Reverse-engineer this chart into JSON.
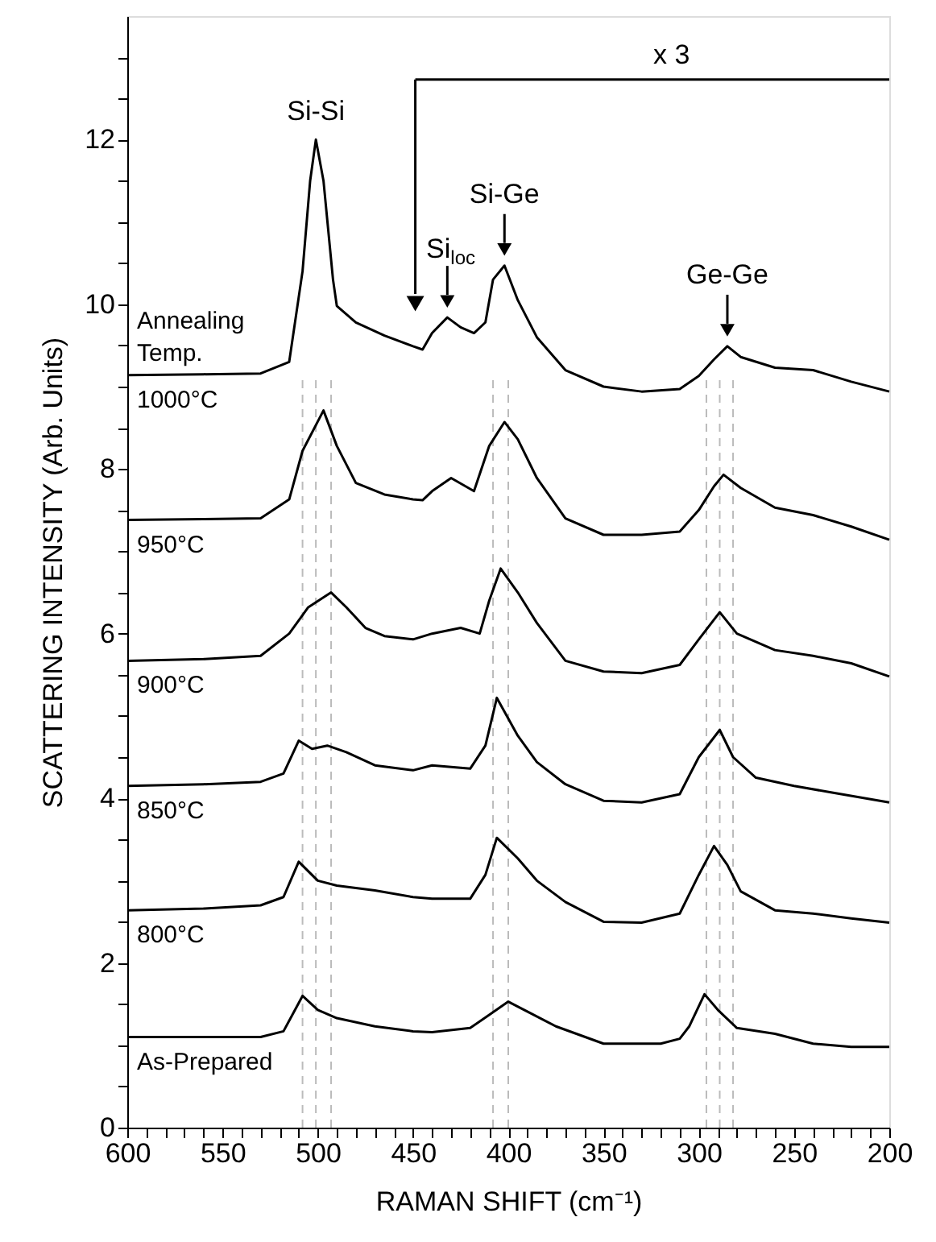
{
  "chart_data": {
    "type": "line",
    "xlabel": "RAMAN SHIFT (cm⁻¹)",
    "ylabel": "SCATTERING INTENSITY (Arb. Units)",
    "legend_title": "Annealing Temp.",
    "xlim": [
      600,
      200
    ],
    "ylim": [
      0,
      13.5
    ],
    "xticks": [
      600,
      {
        "value": 590,
        "label": null
      },
      {
        "value": 580,
        "label": null
      },
      {
        "value": 570,
        "label": null
      },
      {
        "value": 560,
        "label": null
      },
      550,
      {
        "value": 540,
        "label": null
      },
      {
        "value": 530,
        "label": null
      },
      {
        "value": 520,
        "label": null
      },
      {
        "value": 510,
        "label": null
      },
      500,
      {
        "value": 490,
        "label": null
      },
      {
        "value": 480,
        "label": null
      },
      {
        "value": 470,
        "label": null
      },
      {
        "value": 460,
        "label": null
      },
      450,
      {
        "value": 440,
        "label": null
      },
      {
        "value": 430,
        "label": null
      },
      {
        "value": 420,
        "label": null
      },
      {
        "value": 410,
        "label": null
      },
      400,
      {
        "value": 390,
        "label": null
      },
      {
        "value": 380,
        "label": null
      },
      {
        "value": 370,
        "label": null
      },
      {
        "value": 360,
        "label": null
      },
      350,
      {
        "value": 340,
        "label": null
      },
      {
        "value": 330,
        "label": null
      },
      {
        "value": 320,
        "label": null
      },
      {
        "value": 310,
        "label": null
      },
      300,
      {
        "value": 290,
        "label": null
      },
      {
        "value": 280,
        "label": null
      },
      {
        "value": 270,
        "label": null
      },
      {
        "value": 260,
        "label": null
      },
      250,
      {
        "value": 240,
        "label": null
      },
      {
        "value": 230,
        "label": null
      },
      {
        "value": 220,
        "label": null
      },
      {
        "value": 210,
        "label": null
      },
      200
    ],
    "yticks": [
      0,
      {
        "value": 0.5,
        "label": null
      },
      {
        "value": 1,
        "label": null
      },
      {
        "value": 1.5,
        "label": null
      },
      2,
      {
        "value": 2.5,
        "label": null
      },
      {
        "value": 3,
        "label": null
      },
      {
        "value": 3.5,
        "label": null
      },
      4,
      {
        "value": 4.5,
        "label": null
      },
      {
        "value": 5,
        "label": null
      },
      {
        "value": 5.5,
        "label": null
      },
      6,
      {
        "value": 6.5,
        "label": null
      },
      {
        "value": 7,
        "label": null
      },
      {
        "value": 7.5,
        "label": null
      },
      8,
      {
        "value": 8.5,
        "label": null
      },
      {
        "value": 9,
        "label": null
      },
      {
        "value": 9.5,
        "label": null
      },
      10,
      {
        "value": 10.5,
        "label": null
      },
      {
        "value": 11,
        "label": null
      },
      {
        "value": 11.5,
        "label": null
      },
      12,
      {
        "value": 12.5,
        "label": null
      },
      {
        "value": 13,
        "label": null
      }
    ],
    "series": [
      {
        "name": "1000°C",
        "color": "#000000",
        "x": [
          600,
          560,
          530,
          515,
          508,
          504,
          501,
          497,
          492,
          490,
          480,
          465,
          450,
          445,
          440,
          432,
          425,
          418,
          412,
          408,
          402,
          395,
          385,
          370,
          350,
          330,
          310,
          300,
          292,
          285,
          278,
          260,
          240,
          220,
          200
        ],
        "values": [
          9.14,
          9.15,
          9.16,
          9.3,
          10.4,
          11.5,
          12.0,
          11.5,
          10.3,
          9.98,
          9.78,
          9.62,
          9.49,
          9.45,
          9.65,
          9.84,
          9.72,
          9.65,
          9.78,
          10.3,
          10.47,
          10.05,
          9.6,
          9.2,
          9.0,
          8.94,
          8.97,
          9.13,
          9.33,
          9.49,
          9.36,
          9.23,
          9.2,
          9.06,
          8.94
        ]
      },
      {
        "name": "950°C",
        "color": "#000000",
        "x": [
          600,
          560,
          530,
          515,
          508,
          497,
          490,
          480,
          465,
          450,
          445,
          440,
          430,
          418,
          410,
          402,
          395,
          385,
          370,
          350,
          330,
          310,
          300,
          292,
          287,
          278,
          260,
          240,
          220,
          200
        ],
        "values": [
          7.38,
          7.39,
          7.4,
          7.63,
          8.22,
          8.71,
          8.28,
          7.83,
          7.69,
          7.63,
          7.62,
          7.73,
          7.89,
          7.73,
          8.28,
          8.57,
          8.36,
          7.89,
          7.4,
          7.2,
          7.2,
          7.24,
          7.5,
          7.79,
          7.93,
          7.77,
          7.53,
          7.44,
          7.3,
          7.14
        ]
      },
      {
        "name": "900°C",
        "color": "#000000",
        "x": [
          600,
          560,
          530,
          515,
          505,
          493,
          485,
          475,
          465,
          450,
          440,
          425,
          415,
          410,
          404,
          395,
          385,
          370,
          350,
          330,
          310,
          300,
          289,
          280,
          260,
          240,
          220,
          200
        ],
        "values": [
          5.67,
          5.69,
          5.73,
          6.0,
          6.32,
          6.5,
          6.32,
          6.07,
          5.97,
          5.93,
          6.0,
          6.07,
          6.0,
          6.4,
          6.79,
          6.5,
          6.13,
          5.67,
          5.54,
          5.52,
          5.62,
          5.93,
          6.26,
          6.0,
          5.8,
          5.73,
          5.64,
          5.48
        ]
      },
      {
        "name": "850°C",
        "color": "#000000",
        "x": [
          600,
          560,
          530,
          518,
          510,
          503,
          495,
          485,
          470,
          450,
          440,
          420,
          412,
          406,
          395,
          385,
          370,
          350,
          330,
          310,
          300,
          289,
          282,
          270,
          250,
          230,
          200
        ],
        "values": [
          4.15,
          4.17,
          4.2,
          4.3,
          4.7,
          4.6,
          4.64,
          4.56,
          4.4,
          4.34,
          4.4,
          4.36,
          4.64,
          5.22,
          4.76,
          4.44,
          4.17,
          3.97,
          3.95,
          4.05,
          4.5,
          4.83,
          4.5,
          4.25,
          4.15,
          4.07,
          3.95
        ]
      },
      {
        "name": "800°C",
        "color": "#000000",
        "x": [
          600,
          560,
          530,
          518,
          510,
          500,
          490,
          470,
          450,
          440,
          420,
          412,
          406,
          395,
          385,
          370,
          350,
          330,
          310,
          300,
          292,
          285,
          278,
          260,
          240,
          220,
          200
        ],
        "values": [
          2.64,
          2.66,
          2.7,
          2.8,
          3.23,
          3.0,
          2.94,
          2.88,
          2.8,
          2.78,
          2.78,
          3.07,
          3.52,
          3.27,
          3.0,
          2.74,
          2.5,
          2.49,
          2.6,
          3.07,
          3.42,
          3.19,
          2.87,
          2.64,
          2.6,
          2.54,
          2.49
        ]
      },
      {
        "name": "As-Prepared",
        "color": "#000000",
        "x": [
          600,
          560,
          530,
          518,
          508,
          500,
          490,
          470,
          450,
          440,
          420,
          410,
          400,
          390,
          375,
          350,
          320,
          310,
          305,
          297,
          290,
          280,
          260,
          240,
          220,
          200
        ],
        "values": [
          1.1,
          1.1,
          1.1,
          1.17,
          1.6,
          1.43,
          1.33,
          1.23,
          1.17,
          1.16,
          1.21,
          1.37,
          1.53,
          1.41,
          1.23,
          1.02,
          1.02,
          1.08,
          1.23,
          1.62,
          1.43,
          1.21,
          1.14,
          1.02,
          0.98,
          0.98
        ]
      }
    ],
    "annotations": [
      "Si-Si",
      {
        "text": "Si$_{loc}$",
        "x": 432,
        "y": 9.84
      },
      {
        "text": "Si-Ge",
        "x": 402,
        "y": 10.47
      },
      {
        "text": "Ge-Ge",
        "x": 285,
        "y": 9.49
      }
    ],
    "ref_lines": [
      {
        "axis": "y",
        "value": 12.73,
        "label": "x 3",
        "color": "#000000",
        "line_style": "solid"
      },
      {
        "axis": "x",
        "value": 508,
        "label": null,
        "color": "#bbbbbb",
        "line_style": "dashed"
      },
      {
        "axis": "x",
        "value": 501,
        "label": null,
        "color": "#bbbbbb",
        "line_style": "dashed"
      },
      {
        "axis": "x",
        "value": 493,
        "label": null,
        "color": "#bbbbbb",
        "line_style": "dashed"
      },
      {
        "axis": "x",
        "value": 408,
        "label": null,
        "color": "#bbbbbb",
        "line_style": "dashed"
      },
      {
        "axis": "x",
        "value": 400,
        "label": null,
        "color": "#bbbbbb",
        "line_style": "dashed"
      },
      {
        "axis": "x",
        "value": 296,
        "label": null,
        "color": "#bbbbbb",
        "line_style": "dashed"
      },
      {
        "axis": "x",
        "value": 289,
        "label": null,
        "color": "#bbbbbb",
        "line_style": "dashed"
      },
      {
        "axis": "x",
        "value": 282,
        "label": null,
        "color": "#bbbbbb",
        "line_style": "dashed"
      }
    ]
  }
}
